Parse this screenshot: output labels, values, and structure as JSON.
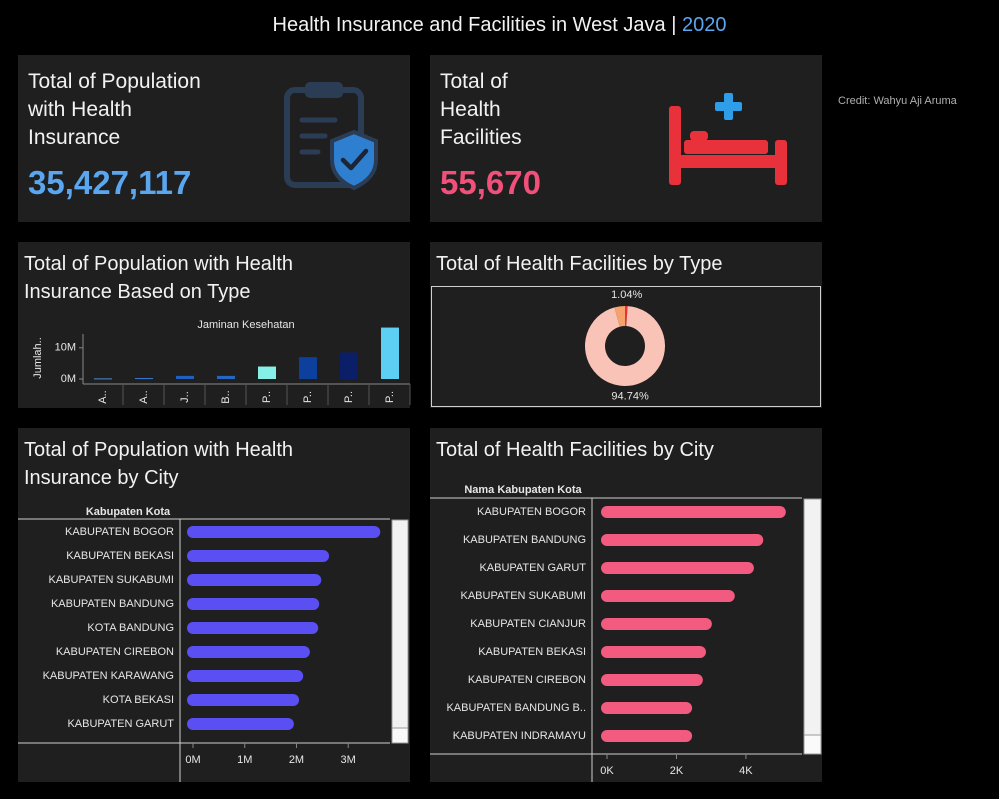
{
  "header": {
    "title": "Health Insurance and Facilities in West Java",
    "separator": "|",
    "year": "2020"
  },
  "credit": "Credit: Wahyu Aji Aruma",
  "kpis": [
    {
      "label": "Total of Population with Health Insurance",
      "value": "35,427,117"
    },
    {
      "label": "Total of Health Facilities",
      "value": "55,670"
    }
  ],
  "chart_data": [
    {
      "type": "bar",
      "title": "Total of Population with Health Insurance Based on Type",
      "subtitle": "Jaminan Kesehatan",
      "ylabel": "Jumlah..",
      "categories": [
        "A..",
        "A..",
        "J..",
        "B..",
        "P..",
        "P..",
        "P..",
        "P.."
      ],
      "values": [
        200000,
        300000,
        1000000,
        1000000,
        4000000,
        7000000,
        8500000,
        16500000
      ],
      "colors": [
        "#4a8fd8",
        "#3a7bd5",
        "#1f5fbf",
        "#2466c4",
        "#86f0e6",
        "#0d3f9c",
        "#0b1f68",
        "#5ccff2"
      ],
      "ylim": [
        0,
        17000000
      ],
      "yticks": [
        {
          "value": 0,
          "label": "0M"
        },
        {
          "value": 10000000,
          "label": "10M"
        }
      ]
    },
    {
      "type": "pie",
      "title": "Total of Health Facilities by Type",
      "donut": true,
      "categories": [
        null,
        null,
        null
      ],
      "values": [
        1.04,
        94.74,
        4.22
      ],
      "value_labels": [
        "1.04%",
        "94.74%",
        null
      ],
      "colors": [
        "#e8313a",
        "#f9c3b8",
        "#f5a36a"
      ]
    },
    {
      "type": "hbar",
      "title": "Total of Population with Health Insurance by City",
      "category_header": "Kabupaten Kota",
      "categories": [
        "KABUPATEN BOGOR",
        "KABUPATEN BEKASI",
        "KABUPATEN SUKABUMI",
        "KABUPATEN BANDUNG",
        "KOTA BANDUNG",
        "KABUPATEN CIREBON",
        "KABUPATEN KARAWANG",
        "KOTA BEKASI",
        "KABUPATEN GARUT"
      ],
      "values": [
        3620000,
        2630000,
        2480000,
        2440000,
        2420000,
        2260000,
        2130000,
        2050000,
        1950000
      ],
      "color": "#5a4ff2",
      "xlim": [
        0,
        3750000
      ],
      "xticks": [
        {
          "value": 0,
          "label": "0M"
        },
        {
          "value": 1000000,
          "label": "1M"
        },
        {
          "value": 2000000,
          "label": "2M"
        },
        {
          "value": 3000000,
          "label": "3M"
        }
      ]
    },
    {
      "type": "hbar",
      "title": "Total of Health Facilities by City",
      "category_header": "Nama Kabupaten Kota",
      "categories": [
        "KABUPATEN BOGOR",
        "KABUPATEN BANDUNG",
        "KABUPATEN GARUT",
        "KABUPATEN SUKABUMI",
        "KABUPATEN CIANJUR",
        "KABUPATEN BEKASI",
        "KABUPATEN CIREBON",
        "KABUPATEN BANDUNG B..",
        "KABUPATEN INDRAMAYU"
      ],
      "values": [
        5150,
        4500,
        4230,
        3680,
        3020,
        2850,
        2760,
        2450,
        2450
      ],
      "color": "#f25a80",
      "xlim": [
        0,
        5500
      ],
      "xticks": [
        {
          "value": 0,
          "label": "0K"
        },
        {
          "value": 2000,
          "label": "2K"
        },
        {
          "value": 4000,
          "label": "4K"
        }
      ]
    }
  ]
}
